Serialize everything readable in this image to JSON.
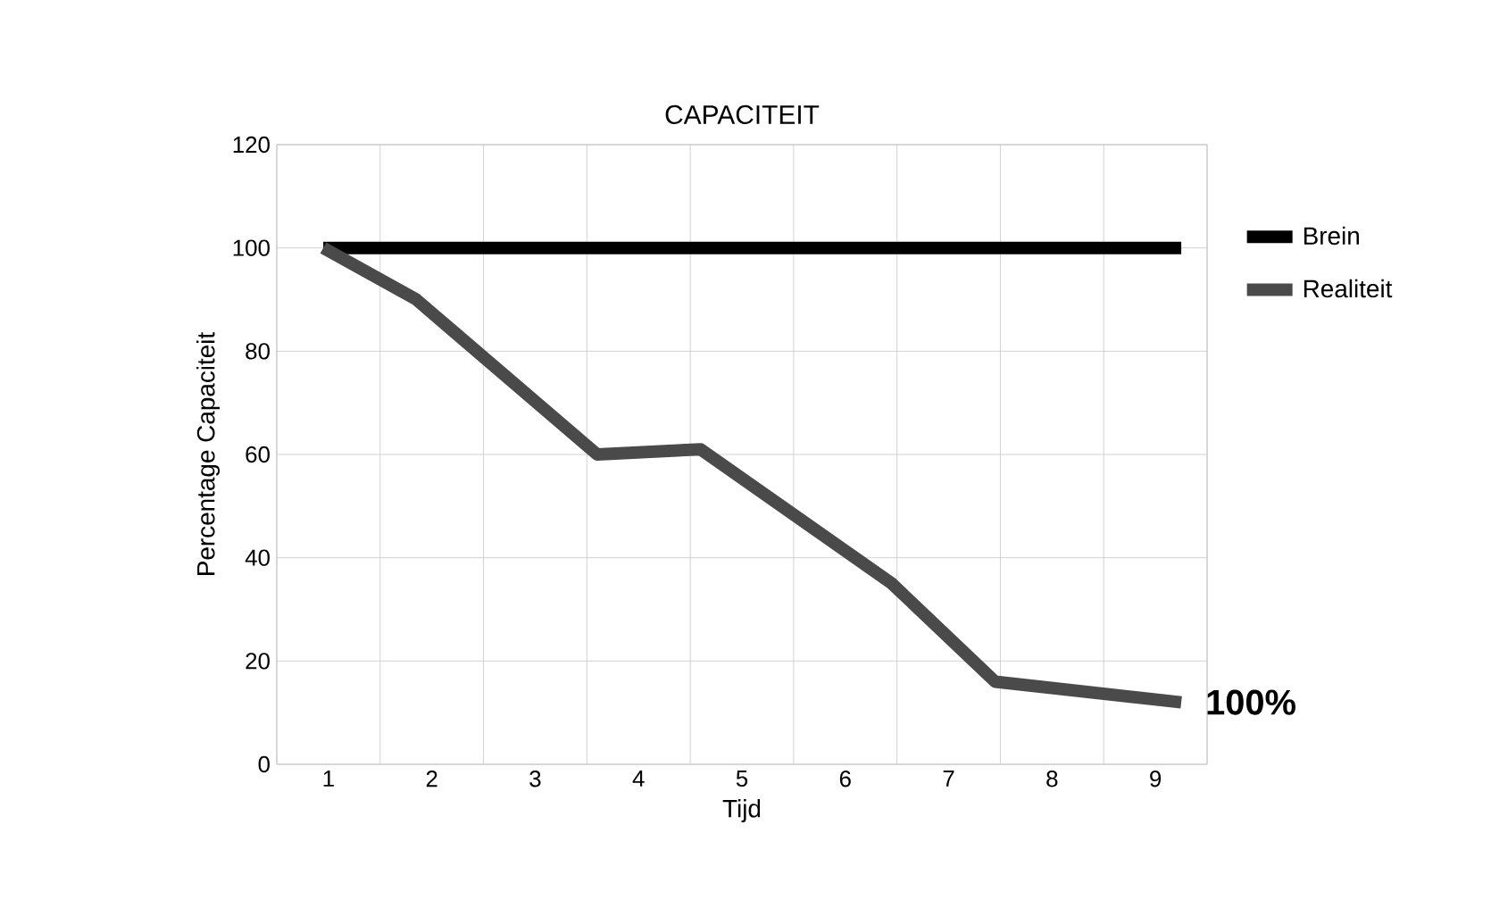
{
  "chart_data": {
    "type": "line",
    "title": "CAPACITEIT",
    "xlabel": "Tijd",
    "ylabel": "Percentage Capaciteit",
    "xlim": [
      0.5,
      9.5
    ],
    "xticks": [
      1,
      2,
      3,
      4,
      5,
      6,
      7,
      8,
      9
    ],
    "ylim": [
      0,
      120
    ],
    "yticks": [
      0,
      20,
      40,
      60,
      80,
      100,
      120
    ],
    "grid": true,
    "legend": "right",
    "marker": "none",
    "line_style": "solid",
    "series": [
      {
        "name": "Brein",
        "color": "#000000",
        "x": [
          0.95,
          9.25
        ],
        "values": [
          100,
          100
        ]
      },
      {
        "name": "Realiteit",
        "color": "#4a4a4a",
        "x": [
          0.95,
          1.85,
          3.6,
          4.6,
          6.45,
          7.45,
          9.25
        ],
        "values": [
          100,
          90,
          60,
          61,
          35,
          16,
          12
        ]
      }
    ],
    "annotations": [
      {
        "text": "100%",
        "x": 9.25,
        "y": 12
      }
    ]
  }
}
